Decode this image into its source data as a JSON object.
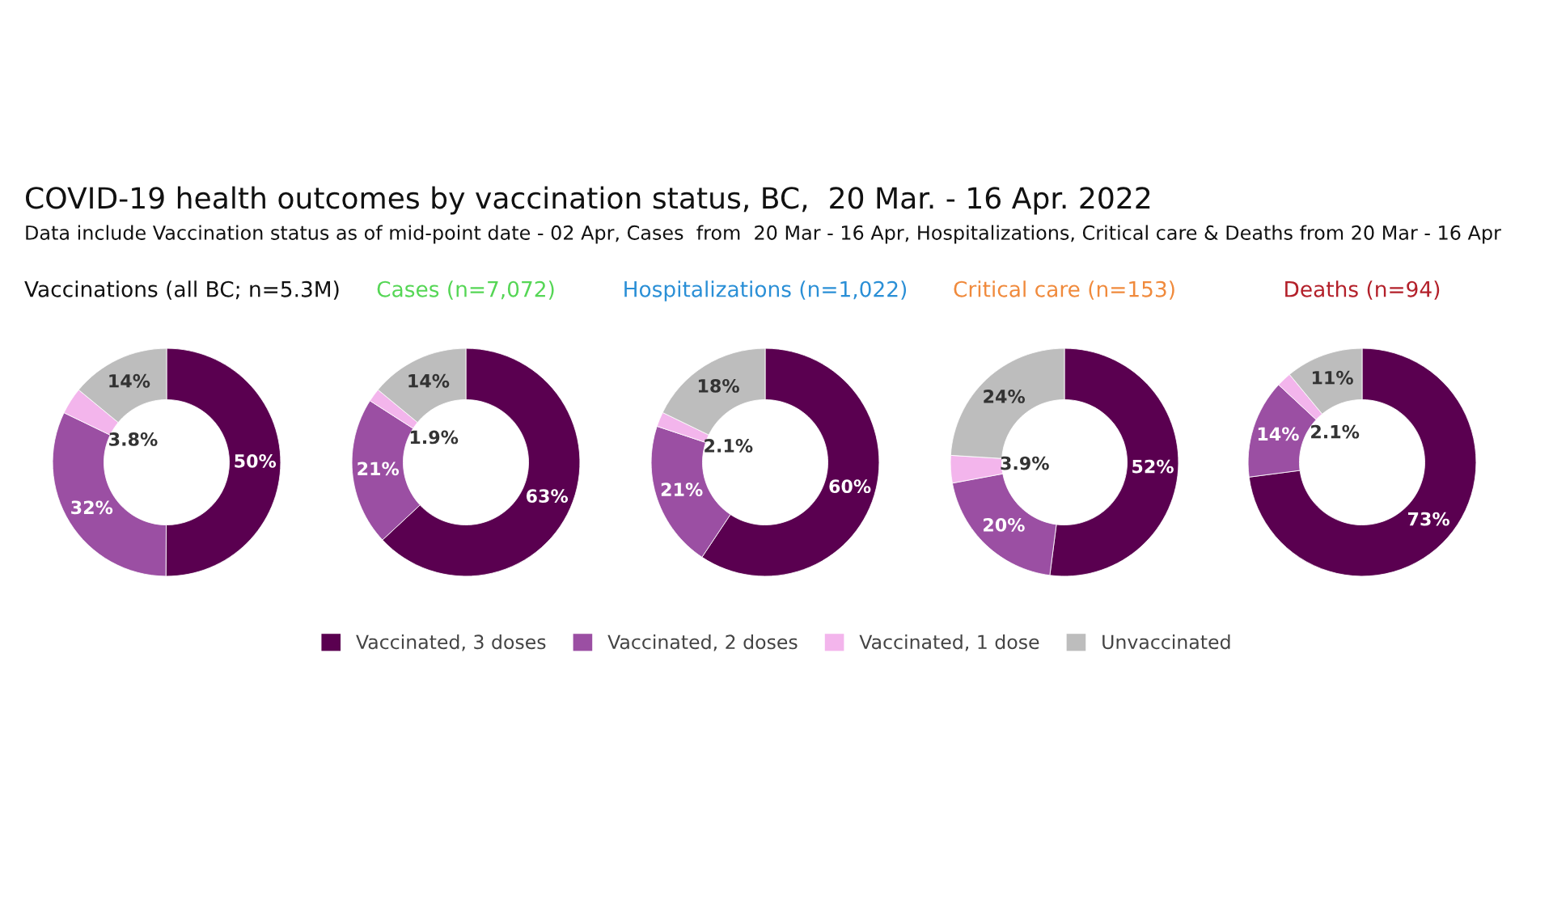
{
  "chart_data": [
    {
      "type": "donut",
      "title": "Vaccinations (all BC; n=5.3M)",
      "categories": [
        "Vaccinated, 3 doses",
        "Vaccinated, 2 doses",
        "Vaccinated, 1 dose",
        "Unvaccinated"
      ],
      "colors": [
        "#5a0050",
        "#9b4fa3",
        "#f3b5ec",
        "#bdbdbd"
      ],
      "values": [
        50,
        32,
        3.8,
        14
      ],
      "value_labels": [
        "50%",
        "32%",
        "3.8%",
        "14%"
      ],
      "legend": "bottom",
      "annotations": [
        "COVID-19 health outcomes by vaccination status, BC,  20 Mar. - 16 Apr. 2022",
        "Data include Vaccination status as of mid-point date - 02 Apr, Cases  from  20 Mar - 16 Apr, Hospitalizations, Critical care & Deaths from 20 Mar - 16 Apr"
      ]
    },
    {
      "type": "donut",
      "title": "Cases (n=7,072)",
      "categories": [
        null,
        null,
        null,
        null
      ],
      "colors": [
        "#5a0050",
        "#9b4fa3",
        "#f3b5ec",
        "#bdbdbd"
      ],
      "values": [
        63,
        21,
        1.9,
        14
      ],
      "value_labels": [
        "63%",
        "21%",
        "1.9%",
        "14%"
      ],
      "legend": false
    },
    {
      "type": "donut",
      "title": "Hospitalizations (n=1,022)",
      "categories": [
        null,
        null,
        null,
        null
      ],
      "colors": [
        "#5a0050",
        "#9b4fa3",
        "#f3b5ec",
        "#bdbdbd"
      ],
      "values": [
        60,
        21,
        2.1,
        18
      ],
      "value_labels": [
        "60%",
        "21%",
        "2.1%",
        "18%"
      ],
      "legend": false
    },
    {
      "type": "donut",
      "title": "Critical care (n=153)",
      "categories": [
        null,
        null,
        null,
        null
      ],
      "colors": [
        "#5a0050",
        "#9b4fa3",
        "#f3b5ec",
        "#bdbdbd"
      ],
      "values": [
        52,
        20,
        3.9,
        24
      ],
      "value_labels": [
        "52%",
        "20%",
        "3.9%",
        "24%"
      ],
      "legend": false
    },
    {
      "type": "donut",
      "title": "Deaths (n=94)",
      "categories": [
        null,
        null,
        null,
        null
      ],
      "colors": [
        "#5a0050",
        "#9b4fa3",
        "#f3b5ec",
        "#bdbdbd"
      ],
      "values": [
        73,
        14,
        2.1,
        11
      ],
      "value_labels": [
        "73%",
        "14%",
        "2.1%",
        "11%"
      ],
      "legend": false
    }
  ]
}
